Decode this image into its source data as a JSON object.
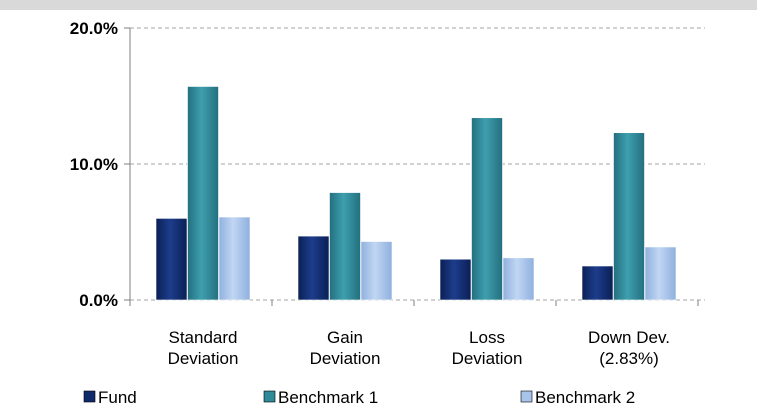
{
  "chart_data": {
    "type": "bar",
    "categories": [
      [
        "Standard",
        "Deviation"
      ],
      [
        "Gain",
        "Deviation"
      ],
      [
        "Loss",
        "Deviation"
      ],
      [
        "Down Dev.",
        "(2.83%)"
      ]
    ],
    "series": [
      {
        "name": "Fund",
        "values": [
          6.0,
          4.7,
          3.0,
          2.5
        ],
        "color": "#0f2a6b"
      },
      {
        "name": "Benchmark 1",
        "values": [
          15.7,
          7.9,
          13.4,
          12.3
        ],
        "color": "#2f8a9a"
      },
      {
        "name": "Benchmark 2",
        "values": [
          6.1,
          4.3,
          3.1,
          3.9
        ],
        "color": "#a9c4ea"
      }
    ],
    "y_ticks": [
      {
        "value": 0,
        "label": "0.0%"
      },
      {
        "value": 10,
        "label": "10.0%"
      },
      {
        "value": 20,
        "label": "20.0%"
      }
    ],
    "ylim": [
      0,
      20
    ],
    "grid": true,
    "legend_position": "bottom",
    "title": "",
    "xlabel": "",
    "ylabel": ""
  }
}
